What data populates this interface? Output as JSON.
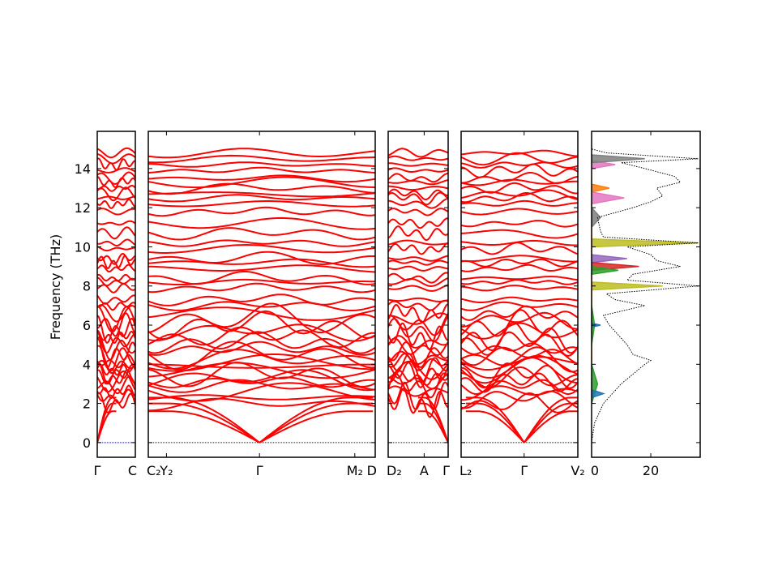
{
  "chart_data": {
    "type": "line",
    "title": "",
    "ylabel": "Frequency (THz)",
    "ylim": [
      -0.75,
      15.9
    ],
    "yticks": [
      0,
      2,
      4,
      6,
      8,
      10,
      12,
      14
    ],
    "band_color": "#ff0000",
    "zero_line_color": "#0000ff",
    "panels": [
      {
        "name": "segment-gamma-c",
        "labels": [
          "Γ",
          "C"
        ],
        "label_pos": [
          0,
          1
        ],
        "gamma_pos": [
          0
        ]
      },
      {
        "name": "segment-c2-y2-gamma-m2-d",
        "labels": [
          "C₂",
          "Y₂",
          "Γ",
          "M₂",
          "D"
        ],
        "label_pos": [
          0,
          0.08,
          0.49,
          0.91,
          1
        ],
        "gamma_pos": [
          0.49
        ]
      },
      {
        "name": "segment-d2-a-gamma",
        "labels": [
          "D₂",
          "A",
          "Γ"
        ],
        "label_pos": [
          0,
          0.6,
          1
        ],
        "gamma_pos": [
          1
        ]
      },
      {
        "name": "segment-l2-gamma-v2",
        "labels": [
          "L₂",
          "Γ",
          "V₂"
        ],
        "label_pos": [
          0,
          0.54,
          1
        ],
        "gamma_pos": [
          0.54
        ]
      }
    ],
    "band_levels_thz": [
      2.0,
      2.3,
      2.6,
      2.9,
      3.1,
      3.3,
      3.5,
      3.7,
      3.9,
      4.1,
      4.3,
      4.5,
      4.8,
      5.1,
      5.4,
      5.7,
      6.0,
      6.3,
      6.6,
      7.0,
      7.3,
      7.9,
      8.2,
      8.4,
      8.9,
      9.2,
      9.4,
      9.9,
      10.2,
      10.7,
      11.2,
      11.8,
      12.2,
      12.5,
      12.7,
      13.0,
      13.3,
      13.5,
      13.9,
      14.2,
      14.5,
      14.8
    ],
    "acoustic_max_thz": [
      1.6,
      2.0,
      2.3
    ],
    "dos": {
      "xlabel": "",
      "xlim": [
        0,
        36.7
      ],
      "xticks": [
        0,
        20
      ],
      "total": {
        "name": "total",
        "color": "#000000",
        "freq": [
          0,
          1,
          2,
          2.5,
          3,
          3.5,
          4,
          4.2,
          4.5,
          5,
          5.5,
          6,
          6.5,
          7,
          7.3,
          7.6,
          8,
          8.3,
          8.6,
          9,
          9.3,
          9.6,
          10,
          10.2,
          10.5,
          10.8,
          11.5,
          12,
          12.3,
          12.6,
          13,
          13.3,
          13.6,
          14,
          14.3,
          14.5,
          14.8,
          15
        ],
        "value": [
          0,
          1,
          4,
          7,
          10,
          14,
          18,
          20,
          14,
          12,
          9,
          6,
          4,
          18,
          8,
          5,
          36,
          12,
          14,
          30,
          22,
          20,
          12,
          36,
          4,
          3,
          2,
          14,
          20,
          24,
          22,
          30,
          28,
          18,
          10,
          36,
          5,
          0
        ]
      },
      "partials": [
        {
          "name": "p1",
          "color": "#bcbd22",
          "freq": [
            7.8,
            8.0,
            8.2,
            10.0,
            10.2,
            10.4
          ],
          "value": [
            0,
            24,
            0,
            0,
            36,
            0
          ]
        },
        {
          "name": "p2",
          "color": "#ff7f0e",
          "freq": [
            12.8,
            13.0,
            13.2,
            13.4,
            13.6,
            4.0,
            4.2,
            4.4
          ],
          "value": [
            0,
            6,
            0,
            10,
            0,
            0,
            5,
            0
          ]
        },
        {
          "name": "p3",
          "color": "#e377c2",
          "freq": [
            12.2,
            12.5,
            12.8,
            14.0,
            14.2,
            14.4
          ],
          "value": [
            0,
            11,
            0,
            0,
            8,
            0
          ]
        },
        {
          "name": "p4",
          "color": "#9467bd",
          "freq": [
            9.2,
            9.4,
            9.6
          ],
          "value": [
            0,
            12,
            0
          ]
        },
        {
          "name": "p5",
          "color": "#d62728",
          "freq": [
            8.8,
            9.0,
            9.2
          ],
          "value": [
            0,
            16,
            0
          ]
        },
        {
          "name": "p6",
          "color": "#2ca02c",
          "freq": [
            2,
            3,
            4,
            5,
            6,
            7,
            8.6,
            8.8,
            9.0
          ],
          "value": [
            1,
            2,
            3,
            2,
            1,
            2,
            0,
            9,
            0
          ]
        },
        {
          "name": "p7",
          "color": "#1f77b4",
          "freq": [
            2.3,
            2.5,
            2.7,
            5.9,
            6.0,
            6.1
          ],
          "value": [
            0,
            4,
            0,
            0,
            3,
            0
          ]
        },
        {
          "name": "p8",
          "color": "#7f7f7f",
          "freq": [
            14.3,
            14.5,
            14.7,
            11,
            11.5,
            12
          ],
          "value": [
            0,
            18,
            0,
            0,
            3,
            0
          ]
        }
      ]
    }
  }
}
